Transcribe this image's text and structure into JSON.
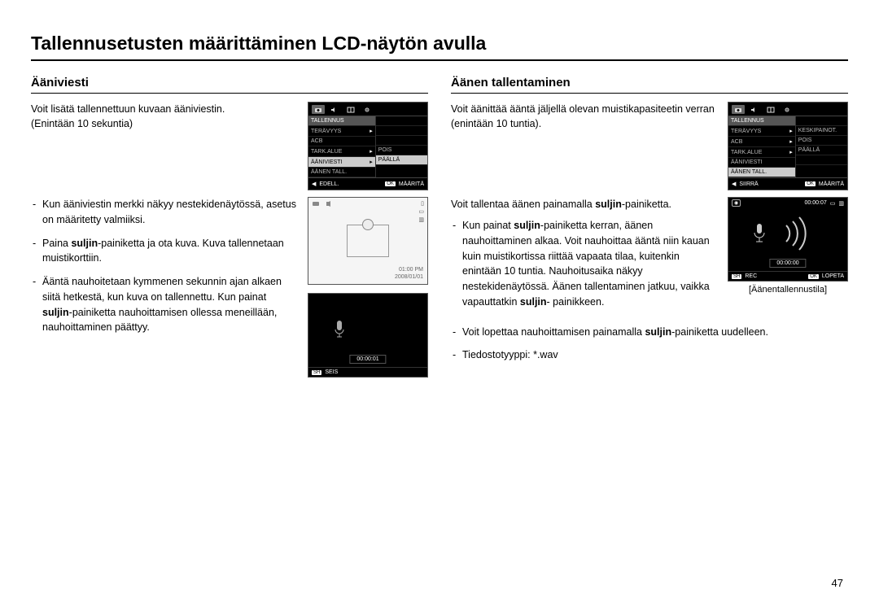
{
  "page": {
    "title": "Tallennusetusten määrittäminen LCD-näytön avulla",
    "number": "47"
  },
  "left": {
    "heading": "Ääniviesti",
    "intro1": "Voit lisätä tallennettuun kuvaan ääniviestin.",
    "intro2": "(Enintään 10 sekuntia)",
    "bullets": [
      "Kun ääniviestin merkki näkyy nestekidenäytössä, asetus on määritetty valmiiksi.",
      "Paina <b>suljin</b>-painiketta ja ota kuva.  Kuva tallennetaan muistikorttiin.",
      "Ääntä nauhoitetaan kymmenen sekunnin ajan alkaen siitä hetkestä, kun kuva on tallennettu. Kun painat <b>suljin</b>-painiketta nauhoittamisen ollessa meneillään, nauhoittaminen päättyy."
    ],
    "menu": {
      "tabs": [
        "camera",
        "sound",
        "grid",
        "gear"
      ],
      "head": "TALLENNUS",
      "left_items": [
        "TERÄVYYS",
        "ACB",
        "TARK.ALUE",
        "ÄÄNIVIESTI",
        "ÄÄNEN TALL."
      ],
      "selected_left_index": 3,
      "right_items": [
        "",
        "",
        "POIS",
        "PÄÄLLÄ"
      ],
      "selected_right_index": 3,
      "footer_back_icon": "◀",
      "footer_back": "EDELL.",
      "footer_ok_key": "OK",
      "footer_ok_label": "MÄÄRITÄ"
    },
    "preview": {
      "time": "01:00 PM",
      "date": "2008/01/01"
    },
    "rec": {
      "top_time": "",
      "time": "00:00:01",
      "sh_key": "SH",
      "sh_label": "SEIS"
    }
  },
  "right": {
    "heading": "Äänen tallentaminen",
    "intro": "Voit äänittää ääntä jäljellä olevan muistikapasiteetin verran (enintään 10 tuntia).",
    "lead": "Voit tallentaa äänen painamalla <b>suljin</b>-painiketta.",
    "bullets": [
      "Kun painat <b>suljin</b>-painiketta kerran, äänen nauhoittaminen alkaa. Voit nauhoittaa ääntä niin kauan kuin muistikortissa riittää vapaata tilaa, kuitenkin enintään 10 tuntia.  Nauhoi­tusaika näkyy nestekidenäytössä. Äänen tallentaminen jatkuu, vaikka vapauttatkin <b>suljin</b>- painikkeen.",
      "Voit lopettaa nauhoittamisen painamalla <b>suljin</b>-painiketta uudelleen.",
      "Tiedostotyyppi:  *.wav"
    ],
    "menu": {
      "tabs": [
        "camera",
        "sound",
        "grid",
        "gear"
      ],
      "head": "TALLENNUS",
      "left_items": [
        "TERÄVYYS",
        "ACB",
        "TARK.ALUE",
        "ÄÄNIVIESTI",
        "ÄÄNEN TALL."
      ],
      "selected_left_index": 4,
      "right_items": [
        "",
        "KESKIPAINOT.",
        "POIS",
        "PÄÄLLÄ"
      ],
      "footer_back_icon": "◀",
      "footer_back": "SIIRRÄ",
      "footer_ok_key": "OK",
      "footer_ok_label": "MÄÄRITÄ"
    },
    "rec": {
      "top_time": "00:00:07",
      "time": "00:00:00",
      "sh_key": "SH",
      "sh_label": "REC",
      "ok_key": "OK",
      "ok_label": "LOPETA"
    },
    "caption": "[Äänentallennustila]"
  }
}
